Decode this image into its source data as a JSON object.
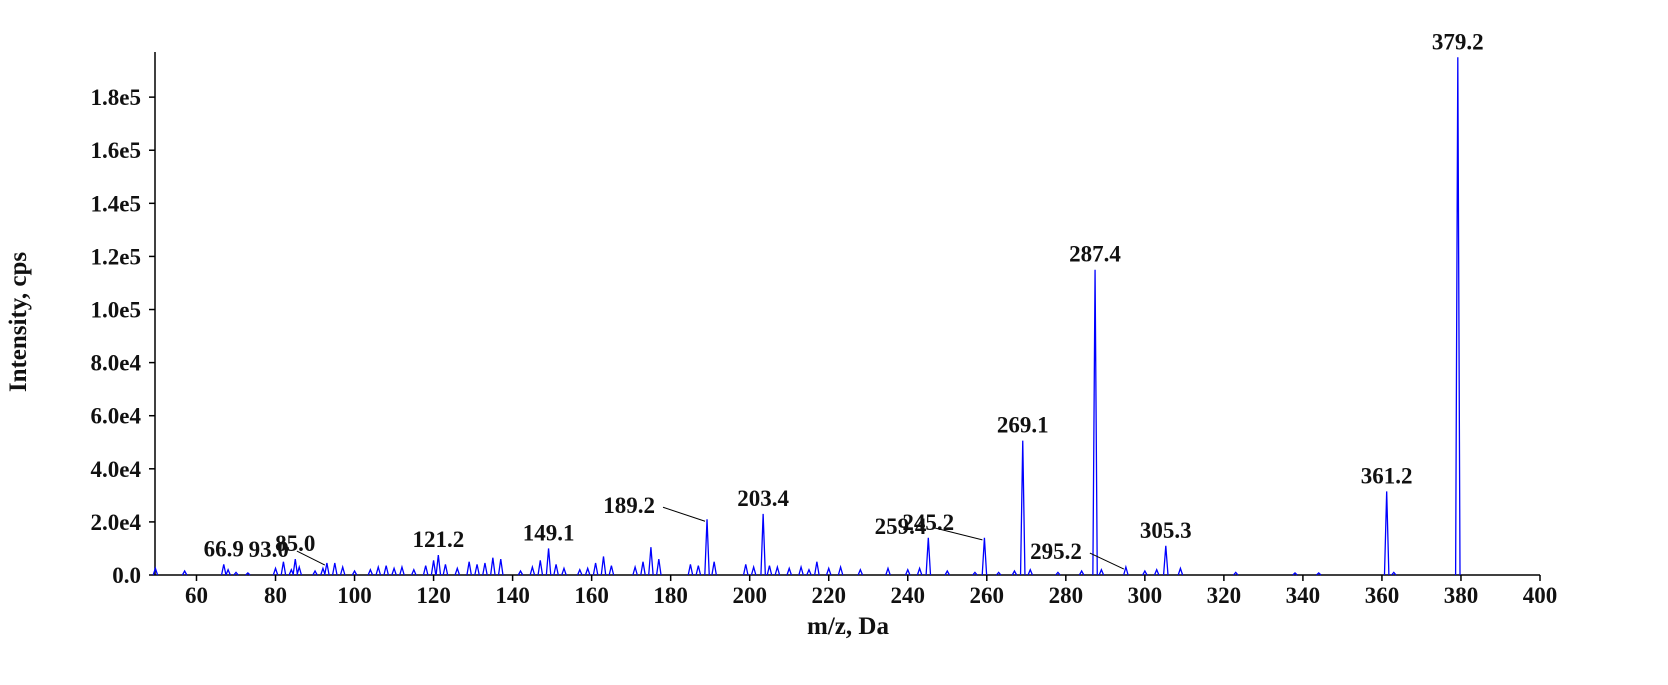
{
  "chart_data": {
    "type": "spectrum",
    "y_label": "Intensity, cps",
    "x_label": "m/z, Da",
    "color": "#0000ff",
    "xlim": [
      49.5,
      400
    ],
    "ylim": [
      0,
      197000
    ],
    "xticks": [
      60,
      80,
      100,
      120,
      140,
      160,
      180,
      200,
      220,
      240,
      260,
      280,
      300,
      320,
      340,
      360,
      380,
      400
    ],
    "yticks": [
      {
        "value": 0,
        "label": "0.0"
      },
      {
        "value": 20000,
        "label": "2.0e4"
      },
      {
        "value": 40000,
        "label": "4.0e4"
      },
      {
        "value": 60000,
        "label": "6.0e4"
      },
      {
        "value": 80000,
        "label": "8.0e4"
      },
      {
        "value": 100000,
        "label": "1.0e5"
      },
      {
        "value": 120000,
        "label": "1.2e5"
      },
      {
        "value": 140000,
        "label": "1.4e5"
      },
      {
        "value": 160000,
        "label": "1.6e5"
      },
      {
        "value": 180000,
        "label": "1.8e5"
      }
    ],
    "x": [
      66.9,
      85.0,
      93.0,
      121.2,
      149.1,
      189.2,
      203.4,
      245.2,
      259.4,
      269.1,
      287.4,
      295.2,
      305.3,
      361.2,
      379.2
    ],
    "x_labels": [
      "66.9",
      "85.0",
      "93.0",
      "121.2",
      "149.1",
      "189.2",
      "203.4",
      "245.2",
      "259.4",
      "269.1",
      "287.4",
      "295.2",
      "305.3",
      "361.2",
      "379.2"
    ],
    "values": [
      4000,
      6000,
      4500,
      7500,
      10000,
      21000,
      23000,
      14000,
      14000,
      50600,
      115000,
      3000,
      11000,
      31500,
      195000
    ],
    "minor_x": [
      49.6,
      57,
      68,
      70,
      73,
      80,
      82,
      84,
      86,
      90,
      92,
      95,
      97,
      100,
      104,
      106,
      108,
      110,
      112,
      115,
      118,
      120,
      123,
      126,
      129,
      131,
      133,
      135,
      137,
      142,
      145,
      147,
      151,
      153,
      157,
      159,
      161,
      163,
      165,
      171,
      173,
      175,
      177,
      185,
      187,
      191,
      199,
      201,
      205,
      207,
      210,
      213,
      215,
      217,
      220,
      223,
      228,
      235,
      240,
      243,
      250,
      257,
      263,
      267,
      271,
      278,
      284,
      289,
      300,
      303,
      309,
      323,
      338,
      344,
      363
    ],
    "minor_values": [
      2500,
      1500,
      2000,
      1000,
      800,
      2500,
      5000,
      2000,
      3000,
      1500,
      2500,
      4500,
      3000,
      1500,
      2000,
      3000,
      3500,
      2500,
      3000,
      2000,
      3500,
      5500,
      4000,
      2500,
      5000,
      4000,
      4500,
      6500,
      6000,
      1500,
      3000,
      5500,
      4000,
      2500,
      2000,
      2500,
      4500,
      7000,
      3500,
      3000,
      5000,
      10500,
      6000,
      4000,
      3500,
      5000,
      4000,
      3000,
      3500,
      3000,
      2500,
      3000,
      2000,
      5000,
      2500,
      3000,
      2000,
      2500,
      2000,
      2500,
      1500,
      1000,
      1000,
      1500,
      2000,
      1000,
      1500,
      2000,
      1500,
      2000,
      2500,
      1000,
      800,
      800,
      1000
    ]
  }
}
